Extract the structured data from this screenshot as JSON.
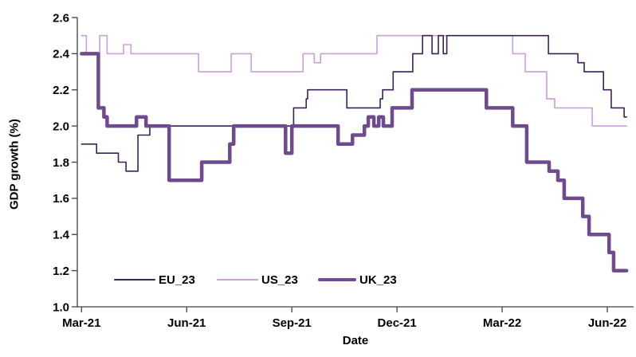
{
  "chart_data": {
    "type": "line",
    "title": "",
    "xlabel": "Date",
    "ylabel": "GDP growth (%)",
    "grid": false,
    "background": "#ffffff",
    "axis_color": "#404040",
    "text_color": "#000000",
    "legend": {
      "position": "inside-bottom-left",
      "entries": [
        "EU_23",
        "US_23",
        "UK_23"
      ]
    },
    "x_axis": {
      "unit": "months since Mar-2021",
      "min": -0.12,
      "max": 15.75,
      "data_end": 15.55,
      "ticks": [
        {
          "v": 0,
          "label": "Mar-21"
        },
        {
          "v": 3,
          "label": "Jun-21"
        },
        {
          "v": 6,
          "label": "Sep-21"
        },
        {
          "v": 9,
          "label": "Dec-21"
        },
        {
          "v": 12,
          "label": "Mar-22"
        },
        {
          "v": 15,
          "label": "Jun-22"
        }
      ]
    },
    "y_axis": {
      "min": 1.0,
      "max": 2.6,
      "ticks": [
        {
          "v": 1.0,
          "label": "1.0"
        },
        {
          "v": 1.2,
          "label": "1.2"
        },
        {
          "v": 1.4,
          "label": "1.4"
        },
        {
          "v": 1.6,
          "label": "1.6"
        },
        {
          "v": 1.8,
          "label": "1.8"
        },
        {
          "v": 2.0,
          "label": "2.0"
        },
        {
          "v": 2.2,
          "label": "2.2"
        },
        {
          "v": 2.4,
          "label": "2.4"
        },
        {
          "v": 2.6,
          "label": "2.6"
        }
      ]
    },
    "draw_order": [
      "US_23",
      "EU_23",
      "UK_23"
    ],
    "series": [
      {
        "name": "EU_23",
        "color": "#3a2159",
        "width": 1.6,
        "step": true,
        "points": [
          [
            0.0,
            1.9
          ],
          [
            0.43,
            1.85
          ],
          [
            1.05,
            1.8
          ],
          [
            1.27,
            1.75
          ],
          [
            1.61,
            1.95
          ],
          [
            1.95,
            2.0
          ],
          [
            6.05,
            2.1
          ],
          [
            6.41,
            2.15
          ],
          [
            6.45,
            2.2
          ],
          [
            7.57,
            2.1
          ],
          [
            8.52,
            2.15
          ],
          [
            8.59,
            2.2
          ],
          [
            8.89,
            2.3
          ],
          [
            9.45,
            2.4
          ],
          [
            9.73,
            2.5
          ],
          [
            10.0,
            2.4
          ],
          [
            10.18,
            2.5
          ],
          [
            10.32,
            2.4
          ],
          [
            10.42,
            2.5
          ],
          [
            13.32,
            2.4
          ],
          [
            14.16,
            2.35
          ],
          [
            14.34,
            2.3
          ],
          [
            14.89,
            2.2
          ],
          [
            15.11,
            2.1
          ],
          [
            15.48,
            2.05
          ]
        ]
      },
      {
        "name": "US_23",
        "color": "#c8a0dc",
        "width": 1.6,
        "step": true,
        "points": [
          [
            0.0,
            2.5
          ],
          [
            0.14,
            2.4
          ],
          [
            0.52,
            2.5
          ],
          [
            0.73,
            2.4
          ],
          [
            1.2,
            2.45
          ],
          [
            1.41,
            2.4
          ],
          [
            3.34,
            2.3
          ],
          [
            4.27,
            2.4
          ],
          [
            4.84,
            2.3
          ],
          [
            6.32,
            2.4
          ],
          [
            6.64,
            2.35
          ],
          [
            6.82,
            2.4
          ],
          [
            8.43,
            2.5
          ],
          [
            12.3,
            2.4
          ],
          [
            12.66,
            2.3
          ],
          [
            13.27,
            2.15
          ],
          [
            13.5,
            2.1
          ],
          [
            14.57,
            2.0
          ]
        ]
      },
      {
        "name": "UK_23",
        "color": "#6e4b8e",
        "width": 4.5,
        "step": true,
        "points": [
          [
            0.0,
            2.4
          ],
          [
            0.48,
            2.1
          ],
          [
            0.64,
            2.05
          ],
          [
            0.73,
            2.0
          ],
          [
            1.57,
            2.05
          ],
          [
            1.84,
            2.0
          ],
          [
            2.5,
            1.7
          ],
          [
            3.43,
            1.8
          ],
          [
            4.23,
            1.9
          ],
          [
            4.34,
            2.0
          ],
          [
            5.82,
            1.85
          ],
          [
            6.0,
            2.0
          ],
          [
            7.32,
            1.9
          ],
          [
            7.73,
            1.95
          ],
          [
            8.07,
            2.0
          ],
          [
            8.18,
            2.05
          ],
          [
            8.34,
            2.0
          ],
          [
            8.48,
            2.05
          ],
          [
            8.61,
            2.0
          ],
          [
            8.86,
            2.1
          ],
          [
            9.43,
            2.2
          ],
          [
            11.55,
            2.1
          ],
          [
            12.3,
            2.0
          ],
          [
            12.7,
            1.8
          ],
          [
            13.34,
            1.75
          ],
          [
            13.59,
            1.7
          ],
          [
            13.77,
            1.6
          ],
          [
            14.3,
            1.5
          ],
          [
            14.48,
            1.4
          ],
          [
            15.05,
            1.3
          ],
          [
            15.18,
            1.2
          ]
        ]
      }
    ]
  }
}
